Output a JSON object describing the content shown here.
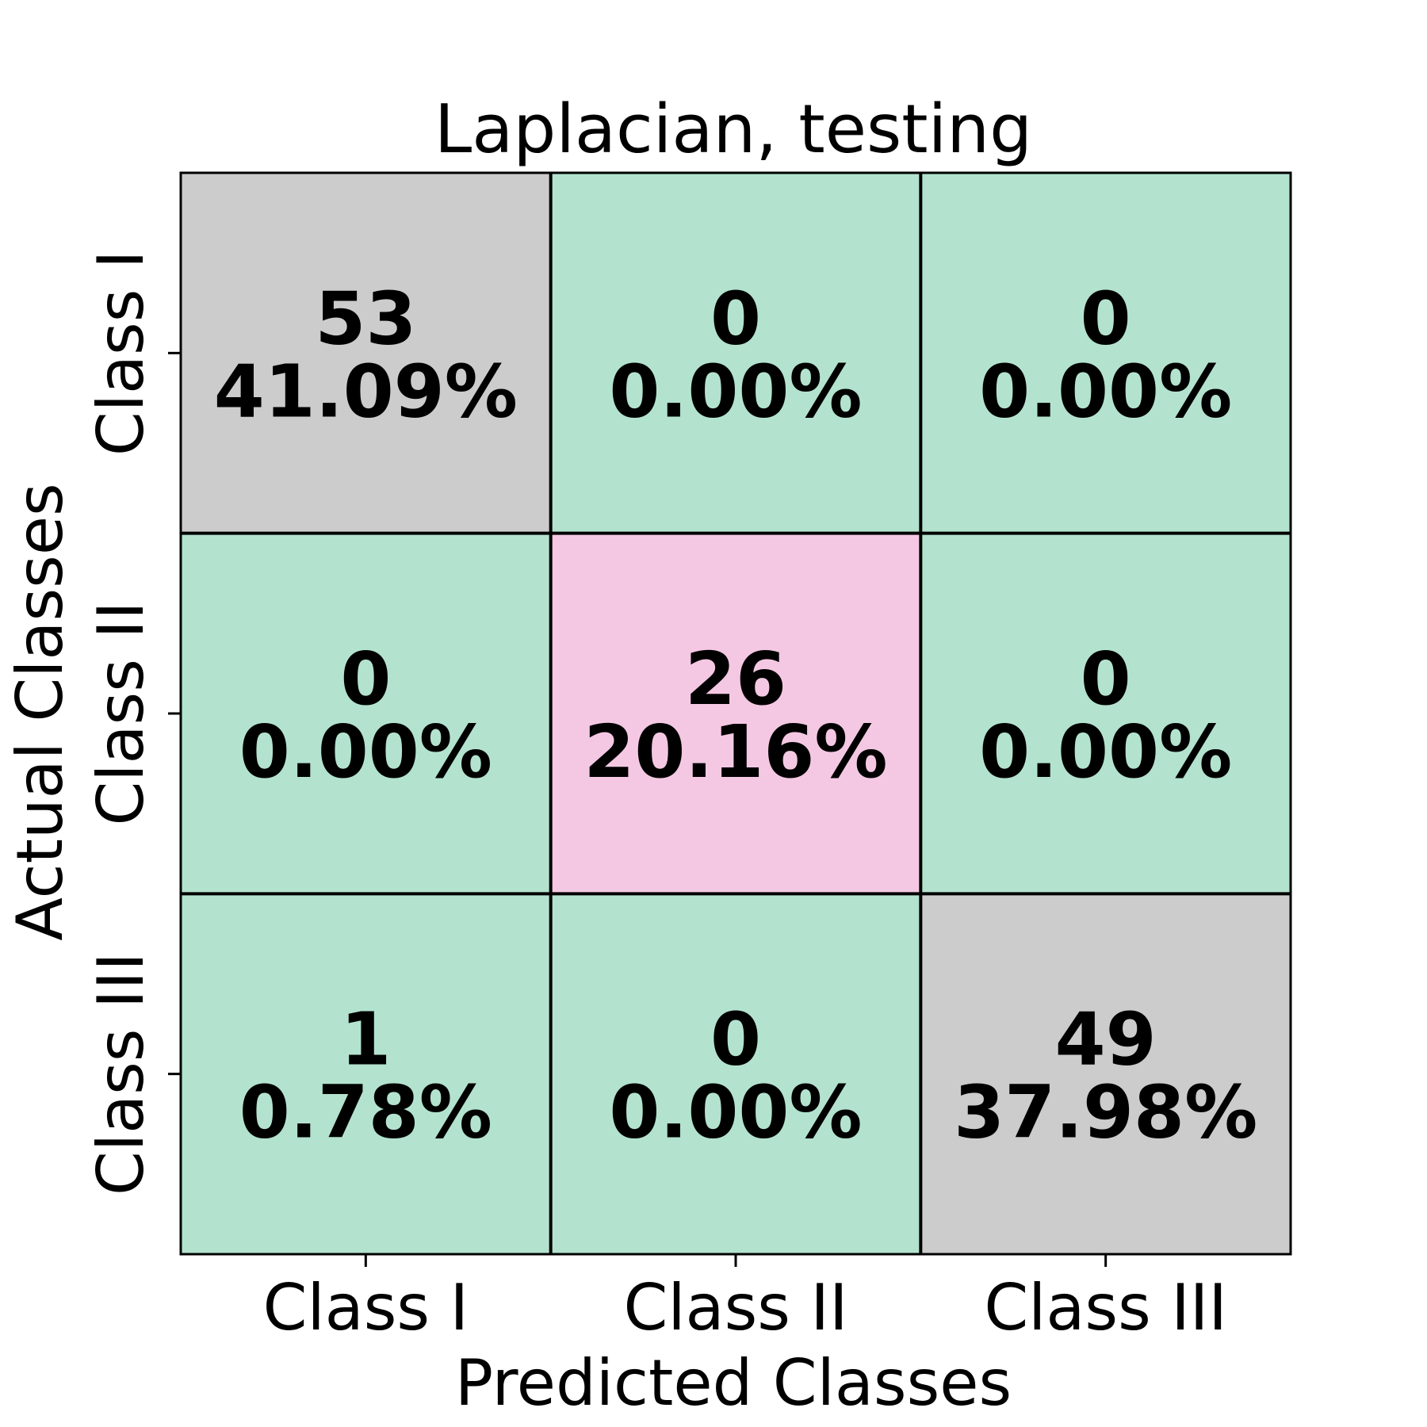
{
  "chart_data": {
    "type": "heatmap",
    "title": "Laplacian, testing",
    "xlabel": "Predicted Classes",
    "ylabel": "Actual Classes",
    "x_categories": [
      "Class I",
      "Class II",
      "Class III"
    ],
    "y_categories": [
      "Class I",
      "Class II",
      "Class III"
    ],
    "counts": [
      [
        53,
        0,
        0
      ],
      [
        0,
        26,
        0
      ],
      [
        1,
        0,
        49
      ]
    ],
    "percentages": [
      [
        "41.09%",
        "0.00%",
        "0.00%"
      ],
      [
        "0.00%",
        "20.16%",
        "0.00%"
      ],
      [
        "0.78%",
        "0.00%",
        "37.98%"
      ]
    ],
    "colors": [
      [
        "#cccccc",
        "#b3e3cf",
        "#b3e3cf"
      ],
      [
        "#b3e3cf",
        "#f4c8e3",
        "#b3e3cf"
      ],
      [
        "#b3e3cf",
        "#b3e3cf",
        "#cccccc"
      ]
    ],
    "grid": true,
    "legend": "none"
  }
}
